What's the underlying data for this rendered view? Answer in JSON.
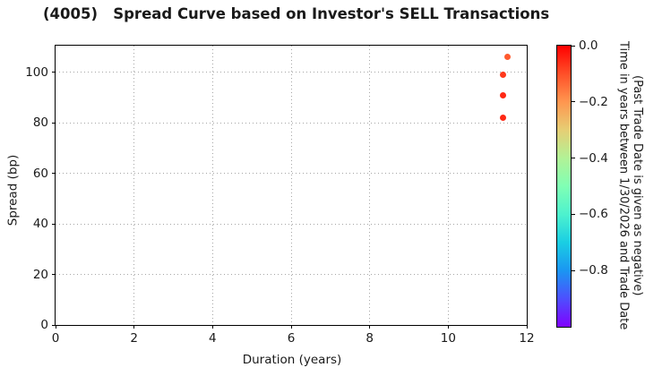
{
  "chart_data": {
    "type": "scatter",
    "title": "(4005)   Spread Curve based on Investor's SELL Transactions",
    "xlabel": "Duration (years)",
    "ylabel": "Spread (bp)",
    "xlim": [
      0,
      12
    ],
    "ylim": [
      0,
      110.6
    ],
    "xticks": [
      0,
      2,
      4,
      6,
      8,
      10,
      12
    ],
    "yticks": [
      0,
      20,
      40,
      60,
      80,
      100
    ],
    "grid": true,
    "grid_style": "dotted",
    "legend_position": "none",
    "points": [
      {
        "duration": 11.5,
        "spread": 106,
        "time_to_trade": -0.11,
        "color": "#ff5a2e"
      },
      {
        "duration": 11.4,
        "spread": 99,
        "time_to_trade": -0.07,
        "color": "#ff381c"
      },
      {
        "duration": 11.4,
        "spread": 91,
        "time_to_trade": -0.05,
        "color": "#ff2814"
      },
      {
        "duration": 11.4,
        "spread": 82,
        "time_to_trade": -0.05,
        "color": "#ff2814"
      }
    ],
    "colorbar": {
      "label_line1": "Time in years between 1/30/2026 and Trade Date",
      "label_line2": "(Past Trade Date is given as negative)",
      "tick_labels": [
        "0.0",
        "−0.2",
        "−0.4",
        "−0.6",
        "−0.8"
      ],
      "tick_values": [
        0.0,
        -0.2,
        -0.4,
        -0.6,
        -0.8
      ],
      "vmax": 0.0,
      "vmin": -1.0,
      "colormap": "rainbow",
      "gradient_stops": [
        "#ff0000",
        "#ff4f28",
        "#ff964f",
        "#e6ce74",
        "#b2f296",
        "#80ffb4",
        "#4df2ce",
        "#1acee3",
        "#1a96f2",
        "#4d4ffe",
        "#8000ff"
      ]
    }
  }
}
